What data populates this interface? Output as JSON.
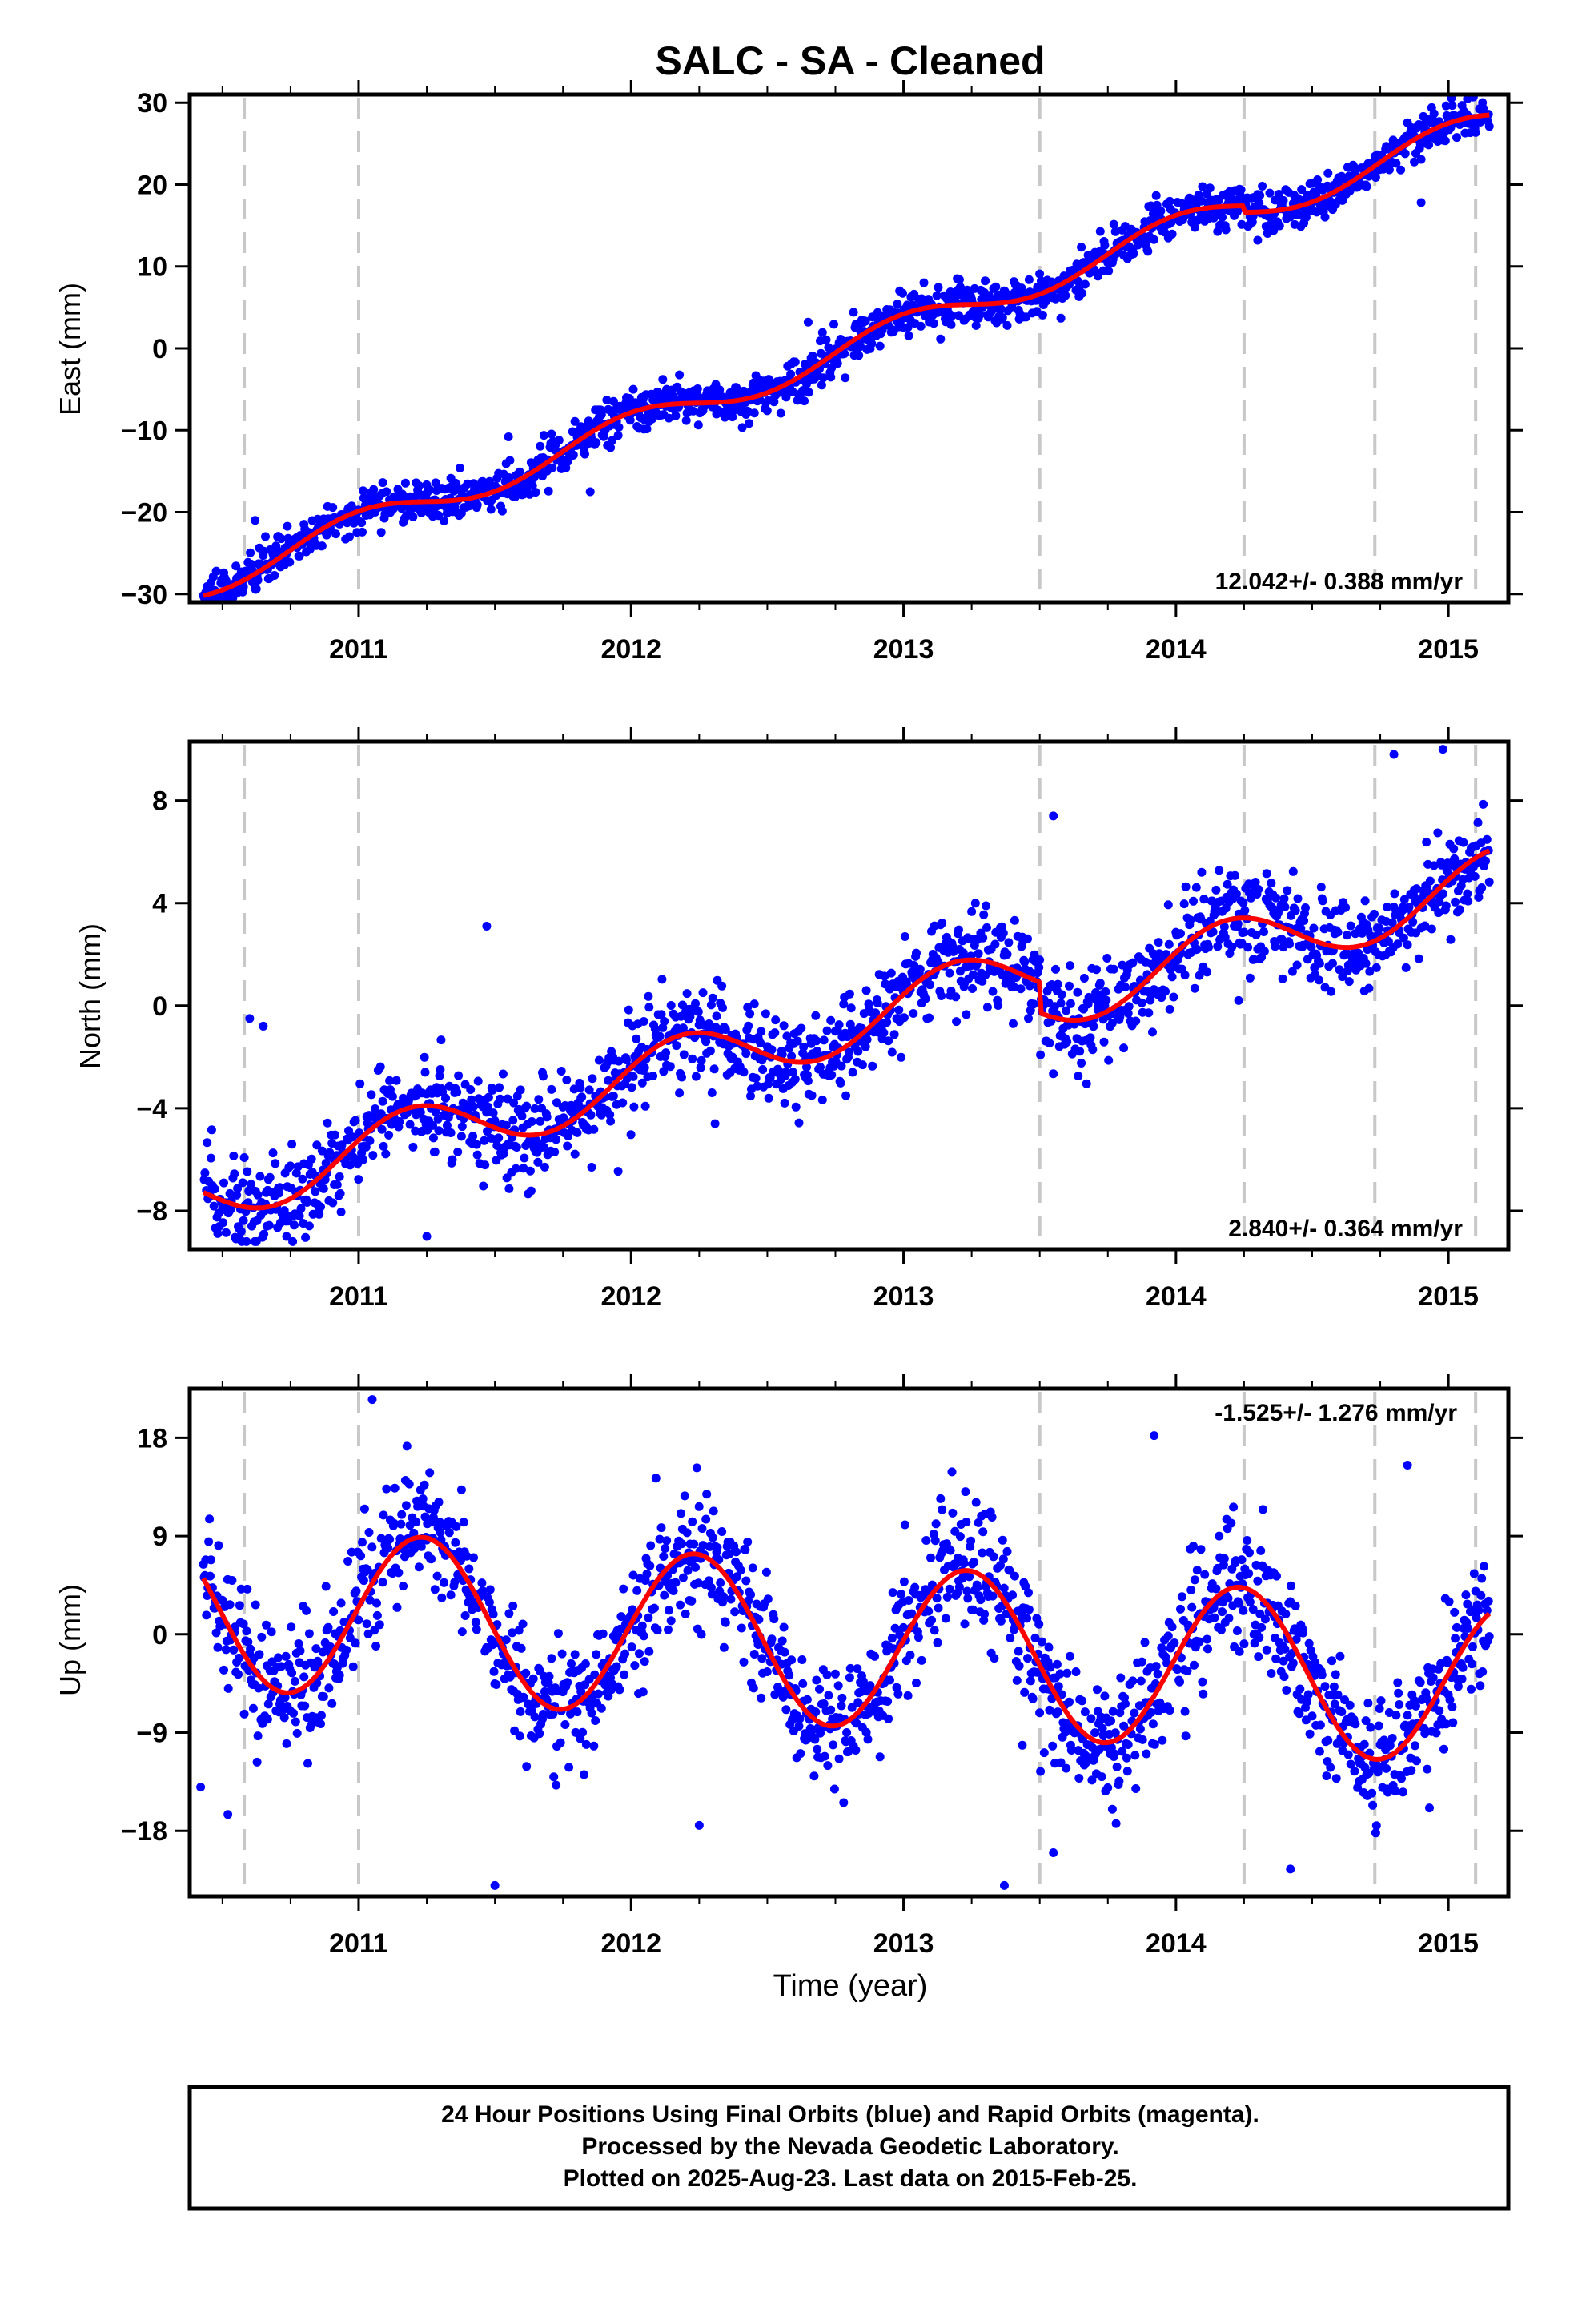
{
  "title": "SALC  - SA - Cleaned",
  "footer": {
    "lines": [
      "24 Hour Positions Using Final Orbits (blue) and Rapid Orbits (magenta).",
      "Processed by the Nevada Geodetic Laboratory.",
      "Plotted on 2025-Aug-23. Last data on 2015-Feb-25."
    ]
  },
  "colors": {
    "points": "#0000ff",
    "fit": "#ff0000",
    "dashed": "#c8c8c8",
    "axis": "#000000"
  },
  "chart_data": [
    {
      "type": "scatter",
      "name": "east",
      "ylabel": "East (mm)",
      "xlabel": "",
      "xlim": [
        2010.38,
        2015.22
      ],
      "ylim": [
        -31,
        31
      ],
      "xticks": [
        "2011",
        "2012",
        "2013",
        "2014",
        "2015"
      ],
      "yticks": [
        -30,
        -20,
        -10,
        0,
        10,
        20,
        30
      ],
      "ytick_labels": [
        "−30",
        "−20",
        "−10",
        "0",
        "10",
        "20",
        "30"
      ],
      "rate_label": "12.042+/- 0.388 mm/yr",
      "rate_position": "bottom-right",
      "breaks": [
        2010.58,
        2011.0,
        2013.5,
        2014.25,
        2014.73,
        2015.1
      ],
      "trend": {
        "x0": 2012.8,
        "y0": 0.0,
        "rate": 12.042
      },
      "seasonal": {
        "amplitude": 1.8,
        "phase": 1.6
      },
      "offsets": [
        {
          "x": 2014.25,
          "dy": 0.8
        }
      ],
      "scatter": 1.3,
      "outliers": [
        {
          "x": 2010.45,
          "y": -29.5
        },
        {
          "x": 2010.62,
          "y": -21.0
        },
        {
          "x": 2011.55,
          "y": -10.8
        },
        {
          "x": 2011.85,
          "y": -17.5
        },
        {
          "x": 2012.65,
          "y": 3.2
        },
        {
          "x": 2013.9,
          "y": 13.5
        },
        {
          "x": 2014.3,
          "y": 13.2
        },
        {
          "x": 2014.9,
          "y": 17.8
        }
      ]
    },
    {
      "type": "scatter",
      "name": "north",
      "ylabel": "North (mm)",
      "xlabel": "",
      "xlim": [
        2010.38,
        2015.22
      ],
      "ylim": [
        -9.5,
        10.3
      ],
      "xticks": [
        "2011",
        "2012",
        "2013",
        "2014",
        "2015"
      ],
      "yticks": [
        -8,
        -4,
        0,
        4,
        8
      ],
      "ytick_labels": [
        "−8",
        "−4",
        "0",
        "4",
        "8"
      ],
      "rate_label": "2.840+/- 0.364 mm/yr",
      "rate_position": "bottom-right",
      "breaks": [
        2010.58,
        2011.0,
        2013.5,
        2014.25,
        2014.73,
        2015.1
      ],
      "trend": {
        "x0": 2012.8,
        "y0": -0.6,
        "rate": 2.84
      },
      "seasonal": {
        "amplitude": 1.2,
        "phase": 0.4
      },
      "offsets": [
        {
          "x": 2013.5,
          "dy": 1.2
        }
      ],
      "scatter": 0.9,
      "outliers": [
        {
          "x": 2010.6,
          "y": -0.5
        },
        {
          "x": 2010.65,
          "y": -0.8
        },
        {
          "x": 2011.47,
          "y": 3.1
        },
        {
          "x": 2011.25,
          "y": -9.0
        },
        {
          "x": 2013.55,
          "y": 7.4
        },
        {
          "x": 2014.8,
          "y": 9.8
        },
        {
          "x": 2014.98,
          "y": 10.0
        },
        {
          "x": 2014.23,
          "y": 0.2
        }
      ]
    },
    {
      "type": "scatter",
      "name": "up",
      "ylabel": "Up (mm)",
      "xlabel": "Time (year)",
      "xlim": [
        2010.38,
        2015.22
      ],
      "ylim": [
        -24,
        22.5
      ],
      "xticks": [
        "2011",
        "2012",
        "2013",
        "2014",
        "2015"
      ],
      "yticks": [
        -18,
        -9,
        0,
        9,
        18
      ],
      "ytick_labels": [
        "−18",
        "−9",
        "0",
        "9",
        "18"
      ],
      "rate_label": "-1.525+/- 1.276 mm/yr",
      "rate_position": "top-right",
      "breaks": [
        2010.58,
        2011.0,
        2013.5,
        2014.25,
        2014.73,
        2015.1
      ],
      "trend": {
        "x0": 2012.8,
        "y0": -1.0,
        "rate": -1.525
      },
      "seasonal": {
        "amplitude": 7.5,
        "phase": 0.1
      },
      "offsets": [],
      "scatter": 3.0,
      "outliers": [
        {
          "x": 2010.42,
          "y": -14.0
        },
        {
          "x": 2010.52,
          "y": -16.5
        },
        {
          "x": 2011.05,
          "y": 21.5
        },
        {
          "x": 2011.5,
          "y": -23.0
        },
        {
          "x": 2012.25,
          "y": -17.5
        },
        {
          "x": 2013.37,
          "y": -23.0
        },
        {
          "x": 2013.55,
          "y": -20.0
        },
        {
          "x": 2013.92,
          "y": 18.2
        },
        {
          "x": 2014.42,
          "y": -21.5
        },
        {
          "x": 2014.85,
          "y": 15.5
        }
      ]
    }
  ]
}
